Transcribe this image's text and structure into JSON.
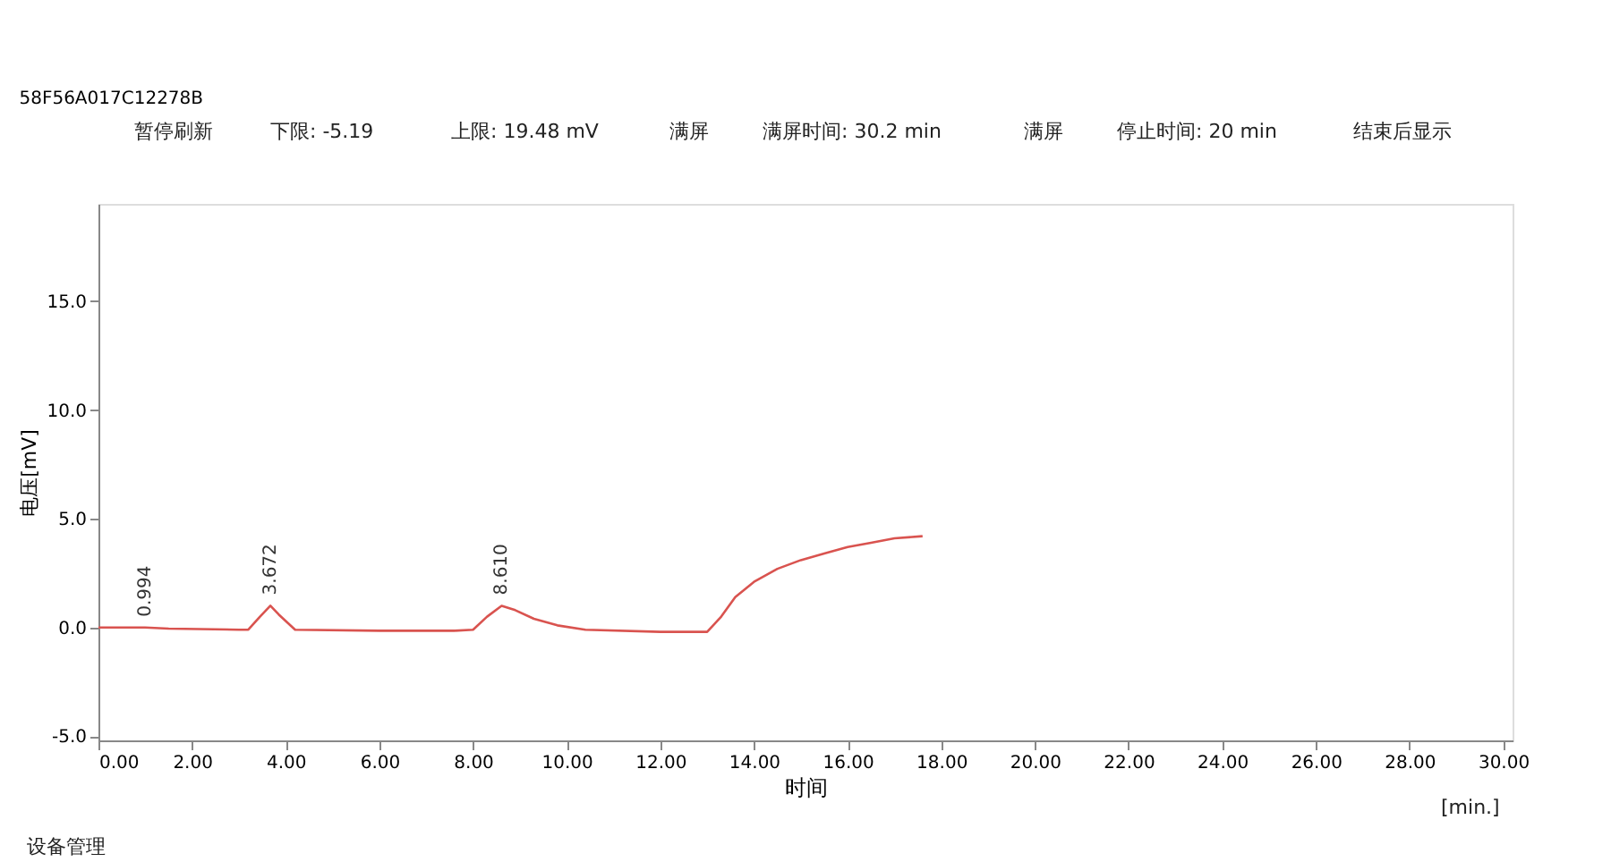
{
  "chart_data": {
    "type": "line",
    "title": "58F56A017C12278B",
    "xlabel": "时间",
    "ylabel": "电压[mV]",
    "x": [
      0,
      0.5,
      0.994,
      1.5,
      3.0,
      3.2,
      3.45,
      3.672,
      3.85,
      4.2,
      6.0,
      7.6,
      8.0,
      8.3,
      8.61,
      8.9,
      9.3,
      9.8,
      10.4,
      12.0,
      13.0,
      13.3,
      13.6,
      14.0,
      14.5,
      15.0,
      15.5,
      16.0,
      16.5,
      17.0,
      17.6
    ],
    "series": [
      {
        "color": "#d9534f",
        "values": [
          0.0,
          0.0,
          0.0,
          -0.05,
          -0.1,
          -0.1,
          0.5,
          1.0,
          0.6,
          -0.1,
          -0.15,
          -0.15,
          -0.1,
          0.5,
          1.0,
          0.8,
          0.4,
          0.1,
          -0.1,
          -0.2,
          -0.2,
          0.5,
          1.4,
          2.1,
          2.7,
          3.1,
          3.4,
          3.7,
          3.9,
          4.1,
          4.2
        ]
      }
    ],
    "xlim": [
      0,
      30.2
    ],
    "ylim": [
      -5.19,
      19.48
    ],
    "xticks": [
      {
        "value": 0,
        "label": "0.00"
      },
      {
        "value": 2,
        "label": "2.00"
      },
      {
        "value": 4,
        "label": "4.00"
      },
      {
        "value": 6,
        "label": "6.00"
      },
      {
        "value": 8,
        "label": "8.00"
      },
      {
        "value": 10,
        "label": "10.00"
      },
      {
        "value": 12,
        "label": "12.00"
      },
      {
        "value": 14,
        "label": "14.00"
      },
      {
        "value": 16,
        "label": "16.00"
      },
      {
        "value": 18,
        "label": "18.00"
      },
      {
        "value": 20,
        "label": "20.00"
      },
      {
        "value": 22,
        "label": "22.00"
      },
      {
        "value": 24,
        "label": "24.00"
      },
      {
        "value": 26,
        "label": "26.00"
      },
      {
        "value": 28,
        "label": "28.00"
      },
      {
        "value": 30,
        "label": "30.00"
      }
    ],
    "yticks": [
      {
        "value": -5,
        "label": "-5.0"
      },
      {
        "value": 0,
        "label": "0.0"
      },
      {
        "value": 5,
        "label": "5.0"
      },
      {
        "value": 10,
        "label": "10.0"
      },
      {
        "value": 15,
        "label": "15.0"
      }
    ],
    "grid": false,
    "marker": "none",
    "line_style": "solid",
    "annotations": [
      {
        "text": "0.994",
        "x": 0.994,
        "y": 0.0
      },
      {
        "text": "3.672",
        "x": 3.672,
        "y": 1.0
      },
      {
        "text": "8.610",
        "x": 8.61,
        "y": 1.0
      },
      "暂停刷新",
      "下限: -5.19",
      "上限: 19.48 mV",
      "满屏",
      "满屏时间: 30.2 min",
      "满屏",
      "停止时间: 20 min",
      "结束后显示",
      "[min.]",
      "设备管理"
    ]
  }
}
